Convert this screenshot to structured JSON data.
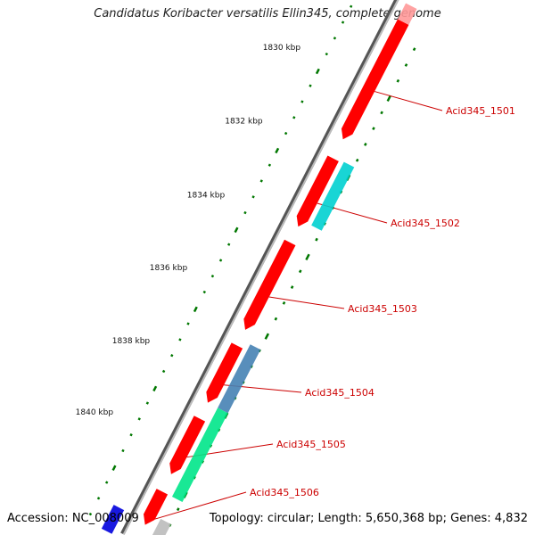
{
  "title": "Candidatus Koribacter versatilis Ellin345, complete genome",
  "accession_label": "Accession: NC_008009",
  "summary_label": "Topology: circular; Length: 5,650,368 bp; Genes: 4,832",
  "ticks": [
    {
      "kbp": 1830,
      "label": "1830 kbp"
    },
    {
      "kbp": 1832,
      "label": "1832 kbp"
    },
    {
      "kbp": 1834,
      "label": "1834 kbp"
    },
    {
      "kbp": 1836,
      "label": "1836 kbp"
    },
    {
      "kbp": 1838,
      "label": "1838 kbp"
    },
    {
      "kbp": 1840,
      "label": "1840 kbp"
    }
  ],
  "genes": [
    {
      "label": "Acid345_1501",
      "strand": "+",
      "color": "#ff0000"
    },
    {
      "label": "Acid345_1502",
      "strand": "+",
      "color": "#ff0000"
    },
    {
      "label": "Acid345_1503",
      "strand": "+",
      "color": "#ff0000"
    },
    {
      "label": "Acid345_1504",
      "strand": "+",
      "color": "#ff0000"
    },
    {
      "label": "Acid345_1505",
      "strand": "+",
      "color": "#ff0000"
    },
    {
      "label": "Acid345_1506",
      "strand": "+",
      "color": "#ff0000"
    }
  ],
  "cog_bars": [
    {
      "color": "#00d0d0"
    },
    {
      "color": "#4682b4"
    },
    {
      "color": "#00e68a"
    },
    {
      "color": "#bbbbbb"
    },
    {
      "color": "#0000dd"
    }
  ],
  "colors": {
    "backbone": "#777777",
    "gene_red": "#ff0000",
    "label_red": "#cc0000",
    "dots": "#007700"
  }
}
